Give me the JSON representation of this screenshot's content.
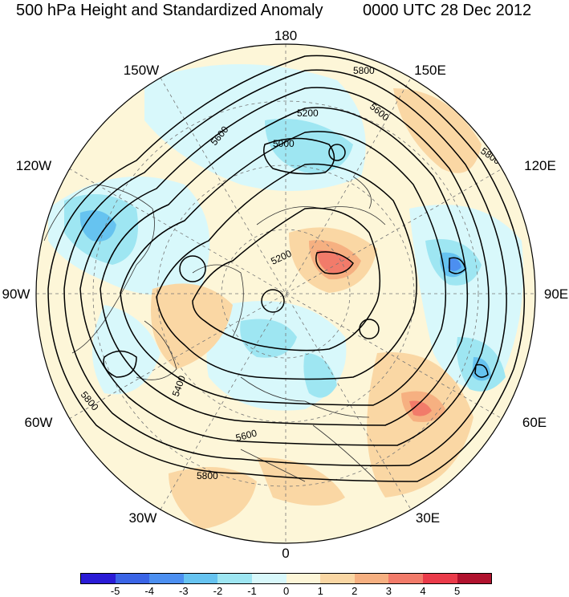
{
  "title": {
    "left": "500 hPa Height and Standardized Anomaly",
    "right": "0000 UTC 28 Dec 2012"
  },
  "longitude_labels": {
    "top": "180",
    "top_left": "150W",
    "top_right": "150E",
    "upper_left": "120W",
    "upper_right": "120E",
    "left": "90W",
    "right": "90E",
    "lower_left": "60W",
    "lower_right": "60E",
    "bottom_left": "30W",
    "bottom_right": "30E",
    "bottom": "0"
  },
  "contour_labels": [
    "5800",
    "5600",
    "5200",
    "5000",
    "5600",
    "5800",
    "5200",
    "5400",
    "5800",
    "5600",
    "5800"
  ],
  "colorbar": {
    "colors": [
      "#2a1bd6",
      "#3a64e6",
      "#4c8ff0",
      "#66c3f0",
      "#9ee6f2",
      "#d8f8fb",
      "#fdf6d8",
      "#fad7a4",
      "#f6b081",
      "#f27b6a",
      "#ea3b4a",
      "#b0122e"
    ],
    "tick_labels": [
      "-5",
      "-4",
      "-3",
      "-2",
      "-1",
      "0",
      "1",
      "2",
      "3",
      "4",
      "5"
    ]
  }
}
